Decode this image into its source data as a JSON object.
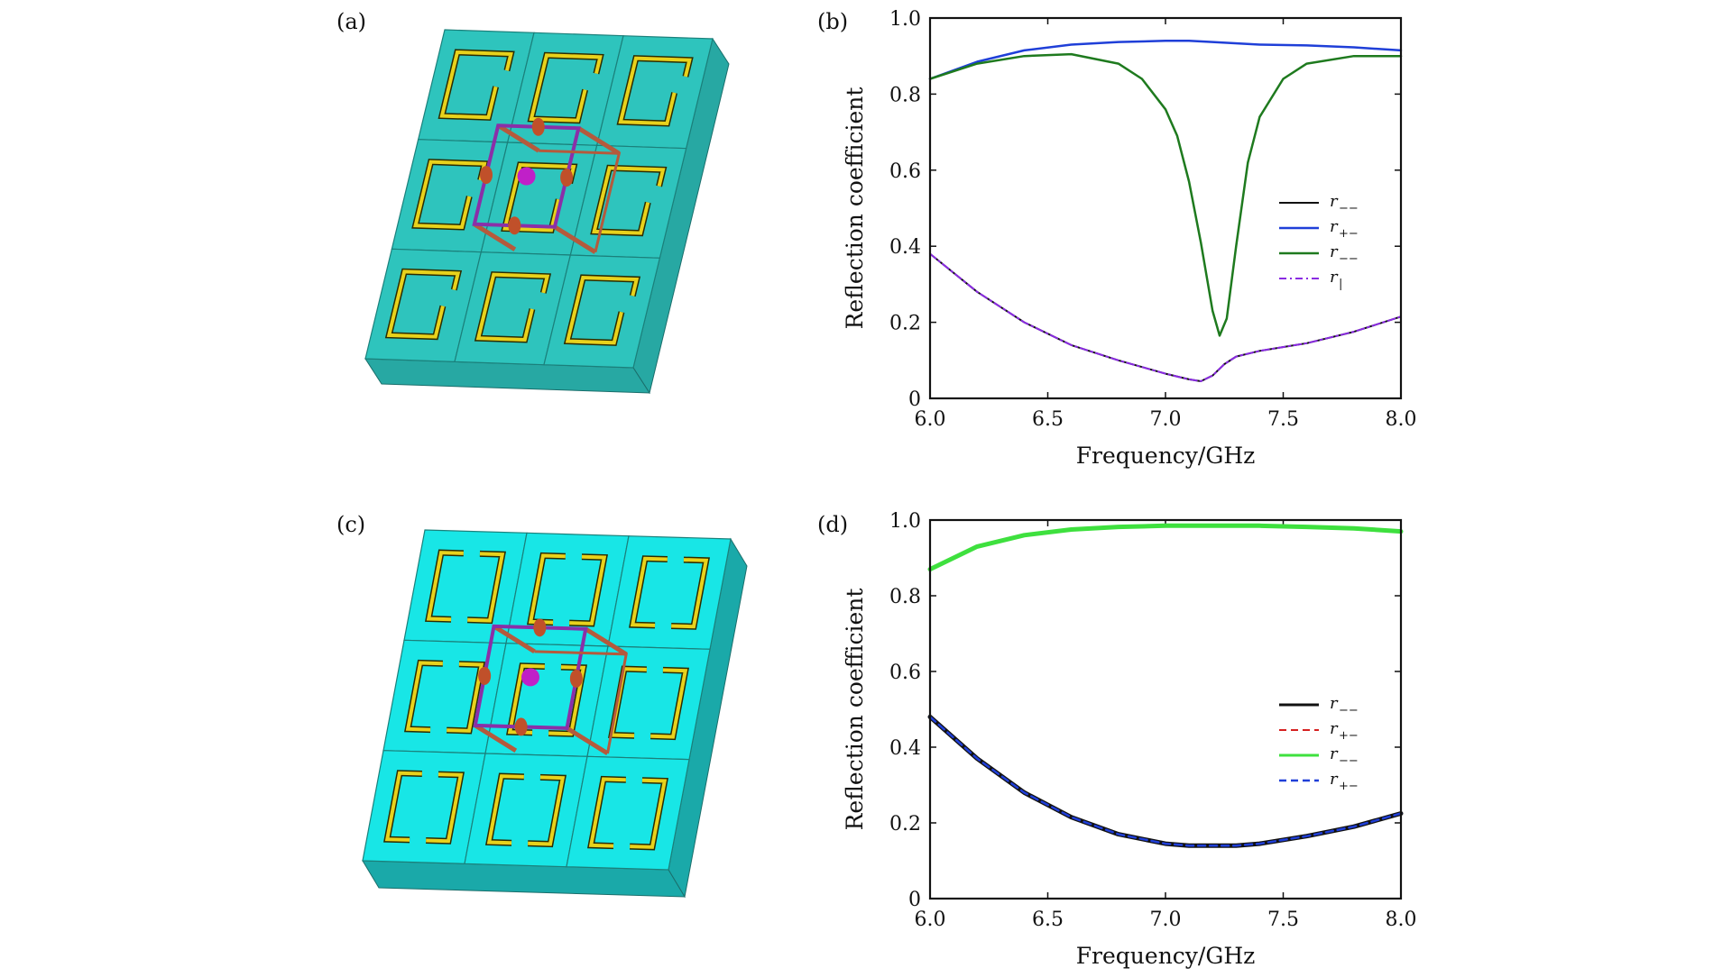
{
  "panels": {
    "a": {
      "label": "(a)",
      "cell_color": "#2ec4bd",
      "side_color": "#27a8a3",
      "ring_color": "#e8d21c",
      "cube_color": "#8a2fa8",
      "rod_color": "#b55a3c"
    },
    "c": {
      "label": "(c)",
      "cell_color": "#18e6e6",
      "side_color": "#1aa9a9",
      "ring_color": "#e8d21c",
      "cube_color": "#8a2fa8",
      "rod_color": "#b55a3c"
    }
  },
  "chart_data": [
    {
      "panel": "(b)",
      "type": "line",
      "xlabel": "Frequency/GHz",
      "ylabel": "Reflection coefficient",
      "xlim": [
        6.0,
        8.0
      ],
      "ylim": [
        0,
        1.0
      ],
      "xticks": [
        "6.0",
        "6.5",
        "7.0",
        "7.5",
        "8.0"
      ],
      "yticks": [
        "0",
        "0.2",
        "0.4",
        "0.6",
        "0.8",
        "1.0"
      ],
      "legend_position": "center-right",
      "series": [
        {
          "name": "r−−",
          "legend_base": "r",
          "legend_sub": "−−",
          "color": "#111111",
          "dash": "",
          "width": 2,
          "x": [
            6.0,
            6.2,
            6.4,
            6.6,
            6.8,
            7.0,
            7.1,
            7.15,
            7.2,
            7.25,
            7.3,
            7.4,
            7.6,
            7.8,
            8.0
          ],
          "y": [
            0.38,
            0.28,
            0.2,
            0.14,
            0.1,
            0.065,
            0.05,
            0.045,
            0.06,
            0.09,
            0.11,
            0.125,
            0.145,
            0.175,
            0.215
          ]
        },
        {
          "name": "r+−",
          "legend_base": "r",
          "legend_sub": "+−",
          "color": "#1f3fd8",
          "dash": "",
          "width": 2.5,
          "x": [
            6.0,
            6.2,
            6.4,
            6.6,
            6.8,
            7.0,
            7.1,
            7.2,
            7.4,
            7.6,
            7.8,
            8.0
          ],
          "y": [
            0.84,
            0.885,
            0.915,
            0.93,
            0.937,
            0.94,
            0.94,
            0.937,
            0.93,
            0.928,
            0.923,
            0.915
          ]
        },
        {
          "name": "r−−",
          "legend_base": "r",
          "legend_sub": "−−",
          "color": "#1e7a1e",
          "dash": "",
          "width": 2.5,
          "x": [
            6.0,
            6.2,
            6.4,
            6.6,
            6.8,
            6.9,
            7.0,
            7.05,
            7.1,
            7.15,
            7.2,
            7.23,
            7.26,
            7.3,
            7.35,
            7.4,
            7.5,
            7.6,
            7.8,
            8.0
          ],
          "y": [
            0.84,
            0.88,
            0.9,
            0.905,
            0.88,
            0.84,
            0.76,
            0.69,
            0.57,
            0.41,
            0.23,
            0.165,
            0.21,
            0.4,
            0.62,
            0.74,
            0.84,
            0.88,
            0.9,
            0.9
          ]
        },
        {
          "name": "r|",
          "legend_base": "r",
          "legend_sub": "|",
          "color": "#8a2be2",
          "dash": "8 4 2 4",
          "width": 2,
          "x": [
            6.0,
            6.2,
            6.4,
            6.6,
            6.8,
            7.0,
            7.1,
            7.15,
            7.2,
            7.25,
            7.3,
            7.4,
            7.6,
            7.8,
            8.0
          ],
          "y": [
            0.38,
            0.28,
            0.2,
            0.14,
            0.1,
            0.065,
            0.05,
            0.045,
            0.06,
            0.09,
            0.11,
            0.125,
            0.145,
            0.175,
            0.215
          ]
        }
      ]
    },
    {
      "panel": "(d)",
      "type": "line",
      "xlabel": "Frequency/GHz",
      "ylabel": "Reflection coefficient",
      "xlim": [
        6.0,
        8.0
      ],
      "ylim": [
        0,
        1.0
      ],
      "xticks": [
        "6.0",
        "6.5",
        "7.0",
        "7.5",
        "8.0"
      ],
      "yticks": [
        "0",
        "0.2",
        "0.4",
        "0.6",
        "0.8",
        "1.0"
      ],
      "legend_position": "center-right",
      "series": [
        {
          "name": "r−−",
          "legend_base": "r",
          "legend_sub": "−−",
          "color": "#111111",
          "dash": "",
          "width": 5,
          "x": [
            6.0,
            6.2,
            6.4,
            6.6,
            6.8,
            7.0,
            7.1,
            7.2,
            7.3,
            7.4,
            7.6,
            7.8,
            8.0
          ],
          "y": [
            0.48,
            0.37,
            0.28,
            0.215,
            0.17,
            0.145,
            0.14,
            0.14,
            0.14,
            0.145,
            0.165,
            0.19,
            0.225
          ]
        },
        {
          "name": "r+−",
          "legend_base": "r",
          "legend_sub": "+−",
          "color": "#d62020",
          "dash": "8 5",
          "width": 2,
          "x": [
            6.0,
            6.2,
            6.4,
            6.6,
            6.8,
            7.0,
            7.1,
            7.2,
            7.3,
            7.4,
            7.6,
            7.8,
            8.0
          ],
          "y": [
            0.48,
            0.37,
            0.28,
            0.215,
            0.17,
            0.145,
            0.14,
            0.14,
            0.14,
            0.145,
            0.165,
            0.19,
            0.225
          ]
        },
        {
          "name": "r−−",
          "legend_base": "r",
          "legend_sub": "−−",
          "color": "#3ee03e",
          "dash": "",
          "width": 5,
          "x": [
            6.0,
            6.2,
            6.4,
            6.6,
            6.8,
            7.0,
            7.2,
            7.4,
            7.6,
            7.8,
            8.0
          ],
          "y": [
            0.87,
            0.93,
            0.96,
            0.975,
            0.982,
            0.985,
            0.985,
            0.985,
            0.982,
            0.978,
            0.97
          ]
        },
        {
          "name": "r+−",
          "legend_base": "r",
          "legend_sub": "+−",
          "color": "#1f3fd8",
          "dash": "8 5",
          "width": 2.5,
          "x": [
            6.0,
            6.2,
            6.4,
            6.6,
            6.8,
            7.0,
            7.1,
            7.2,
            7.3,
            7.4,
            7.6,
            7.8,
            8.0
          ],
          "y": [
            0.48,
            0.37,
            0.28,
            0.215,
            0.17,
            0.145,
            0.14,
            0.14,
            0.14,
            0.145,
            0.165,
            0.19,
            0.225
          ]
        }
      ]
    }
  ]
}
